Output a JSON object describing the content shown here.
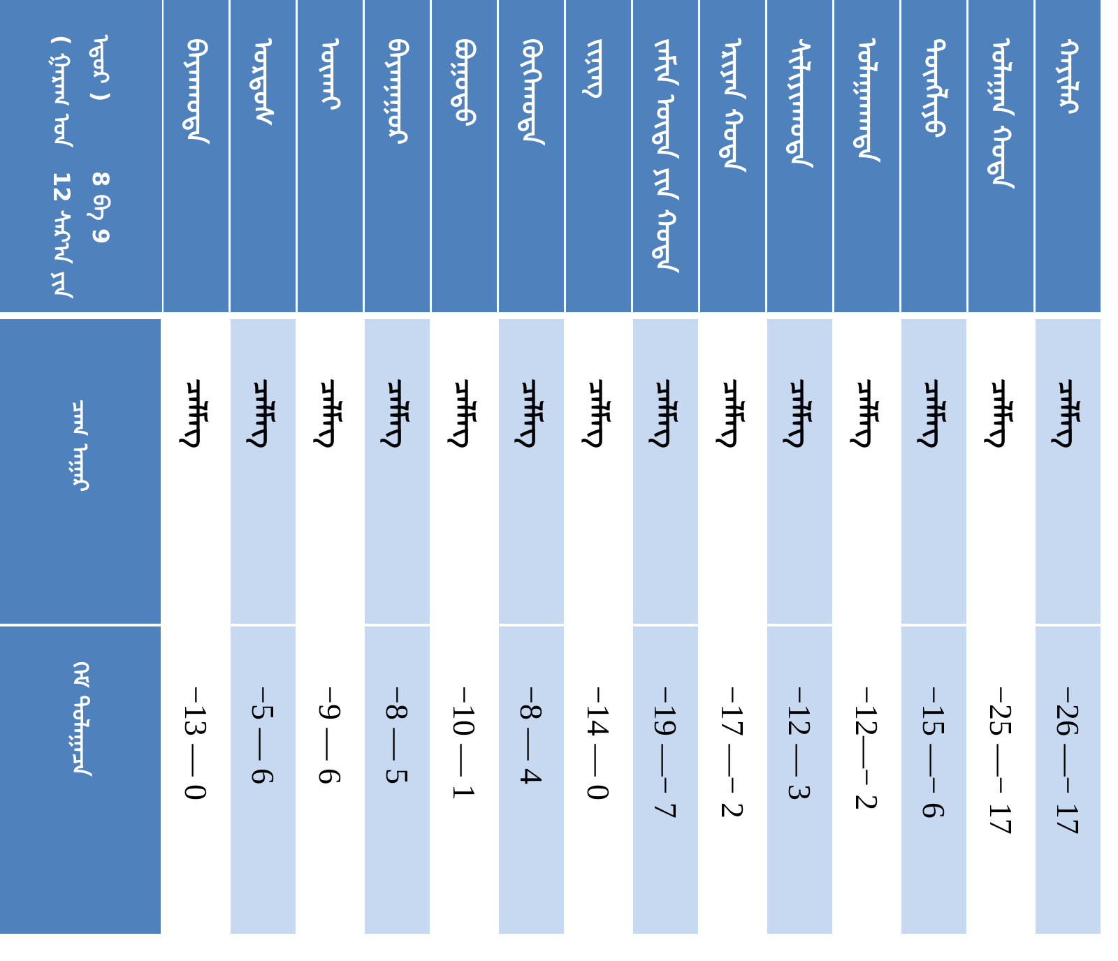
{
  "header": {
    "date_line1": "12 ᠰᠠᠷ᠎ᠠ ᠶᠢᠨ 8 ᠪᠠ 9",
    "date_line2": "( ᠭᠠᠷᠠᠭ ᠤᠨ ᠡᠳᠦᠷ )",
    "weather_label": "ᠴᠠᠭ ᠠᠭᠠᠷ",
    "temperature_label": "ᠬᠡᠮ ᠳᠤᠯᠠᠭᠠᠴᠠ"
  },
  "colors": {
    "header_blue": "#4f81bd",
    "stripe_light": "#c6d9f1"
  },
  "rows": [
    {
      "city": "ᠬᠠᠶᠢᠯᠠᠷ",
      "weather": "ᠴᠡᠯᠮᠡᠭ",
      "temp": "−26 —− 17"
    },
    {
      "city": "ᠤᠯᠠᠭᠠᠨ ᠬᠣᠲᠠ",
      "weather": "ᠴᠡᠯᠮᠡᠭ",
      "temp": "−25 —− 17"
    },
    {
      "city": "ᠲᠥᠩᠯᠢᠶᠣ",
      "weather": "ᠴᠡᠯᠮᠡᠭ",
      "temp": "−15 —− 6"
    },
    {
      "city": "ᠤᠯᠠᠭᠠᠨᠬᠠᠳᠠ",
      "weather": "ᠴᠡᠯᠮᠡᠭ",
      "temp": "−12—− 2"
    },
    {
      "city": "ᠰᠢᠯᠢᠶᠢᠨᠬᠣᠲᠠ",
      "weather": "ᠴᠡᠯᠮᠡᠭ",
      "temp": "−12 — 3"
    },
    {
      "city": "ᠡᠷᠢᠶᠡᠨ ᠬᠣᠲᠠ",
      "weather": "ᠴᠡᠯᠮᠡᠭ",
      "temp": "−17 —− 2"
    },
    {
      "city": "ᠵᠠᠮᠢᠨ ᠦᠳᠡ ᠶᠢᠨ ᠬᠣᠲᠠ",
      "weather": "ᠴᠡᠯᠮᠡᠭ",
      "temp": "−19 —− 7"
    },
    {
      "city": "ᠵᠢᠨᠢᠩ",
      "weather": "ᠴᠡᠯᠮᠡᠭ",
      "temp": "−14 — 0"
    },
    {
      "city": "ᠬᠥᠬᠡᠬᠣᠲᠠ",
      "weather": "ᠴᠡᠯᠮᠡᠭ",
      "temp": "−8 — 4"
    },
    {
      "city": "ᠪᠤᠭᠤᠲᠤ",
      "weather": "ᠴᠡᠯᠮᠡᠭ",
      "temp": "−10 — 1"
    },
    {
      "city": "ᠪᠠᠶᠠᠨᠨᠠᠭᠤᠷ",
      "weather": "ᠴᠡᠯᠮᠡᠭ",
      "temp": "−8 — 5"
    },
    {
      "city": "ᠦᠬᠠᠢ",
      "weather": "ᠴᠡᠯᠮᠡᠭ",
      "temp": "−9 — 6"
    },
    {
      "city": "ᠣᠷᠳᠤᠰ",
      "weather": "ᠴᠡᠯᠮᠡᠭ",
      "temp": "−5 — 6"
    },
    {
      "city": "ᠪᠠᠶᠠᠨᠬᠣᠲᠠ",
      "weather": "ᠴᠡᠯᠮᠡᠭ",
      "temp": "−13 — 0"
    }
  ]
}
